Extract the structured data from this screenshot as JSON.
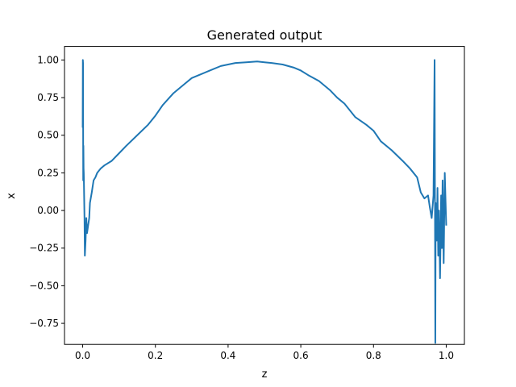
{
  "chart_data": {
    "type": "line",
    "title": "Generated output",
    "xlabel": "z",
    "ylabel": "x",
    "xlim": [
      -0.05,
      1.05
    ],
    "ylim": [
      -0.89,
      1.09
    ],
    "xticks": [
      0.0,
      0.2,
      0.4,
      0.6,
      0.8,
      1.0
    ],
    "xtick_labels": [
      "0.0",
      "0.2",
      "0.4",
      "0.6",
      "0.8",
      "1.0"
    ],
    "yticks": [
      -0.75,
      -0.5,
      -0.25,
      0.0,
      0.25,
      0.5,
      0.75,
      1.0
    ],
    "ytick_labels": [
      "−0.75",
      "−0.50",
      "−0.25",
      "0.00",
      "0.25",
      "0.50",
      "0.75",
      "1.00"
    ],
    "grid": false,
    "legend": "none",
    "line_color": "#1f77b4",
    "series": [
      {
        "x": [
          0.0,
          0.0005,
          0.001,
          0.0015,
          0.002,
          0.0025,
          0.003,
          0.004,
          0.005,
          0.006,
          0.008,
          0.01,
          0.012,
          0.015,
          0.018,
          0.02,
          0.025,
          0.03,
          0.035,
          0.04,
          0.05,
          0.06,
          0.08,
          0.1,
          0.12,
          0.15,
          0.18,
          0.2,
          0.22,
          0.25,
          0.28,
          0.3,
          0.32,
          0.35,
          0.38,
          0.4,
          0.42,
          0.45,
          0.48,
          0.5,
          0.52,
          0.55,
          0.58,
          0.6,
          0.62,
          0.65,
          0.68,
          0.7,
          0.72,
          0.75,
          0.78,
          0.8,
          0.82,
          0.85,
          0.88,
          0.9,
          0.92,
          0.93,
          0.94,
          0.95,
          0.955,
          0.96,
          0.965,
          0.968,
          0.97,
          0.971,
          0.972,
          0.974,
          0.976,
          0.978,
          0.98,
          0.983,
          0.986,
          0.988,
          0.99,
          0.993,
          0.996,
          1.0
        ],
        "y": [
          0.55,
          1.0,
          0.98,
          0.2,
          0.43,
          0.28,
          0.25,
          0.1,
          -0.05,
          -0.3,
          -0.2,
          -0.05,
          -0.15,
          -0.1,
          -0.05,
          0.05,
          0.12,
          0.2,
          0.22,
          0.25,
          0.28,
          0.3,
          0.33,
          0.38,
          0.43,
          0.5,
          0.57,
          0.63,
          0.7,
          0.78,
          0.84,
          0.88,
          0.9,
          0.93,
          0.96,
          0.97,
          0.98,
          0.985,
          0.99,
          0.985,
          0.98,
          0.97,
          0.95,
          0.93,
          0.9,
          0.86,
          0.8,
          0.75,
          0.71,
          0.62,
          0.57,
          0.53,
          0.46,
          0.4,
          0.33,
          0.28,
          0.22,
          0.12,
          0.08,
          0.1,
          0.02,
          -0.05,
          0.1,
          1.0,
          -0.88,
          0.05,
          -0.1,
          -0.2,
          0.15,
          -0.3,
          0.0,
          -0.45,
          0.1,
          -0.25,
          0.2,
          -0.35,
          0.25,
          -0.1
        ]
      }
    ]
  }
}
